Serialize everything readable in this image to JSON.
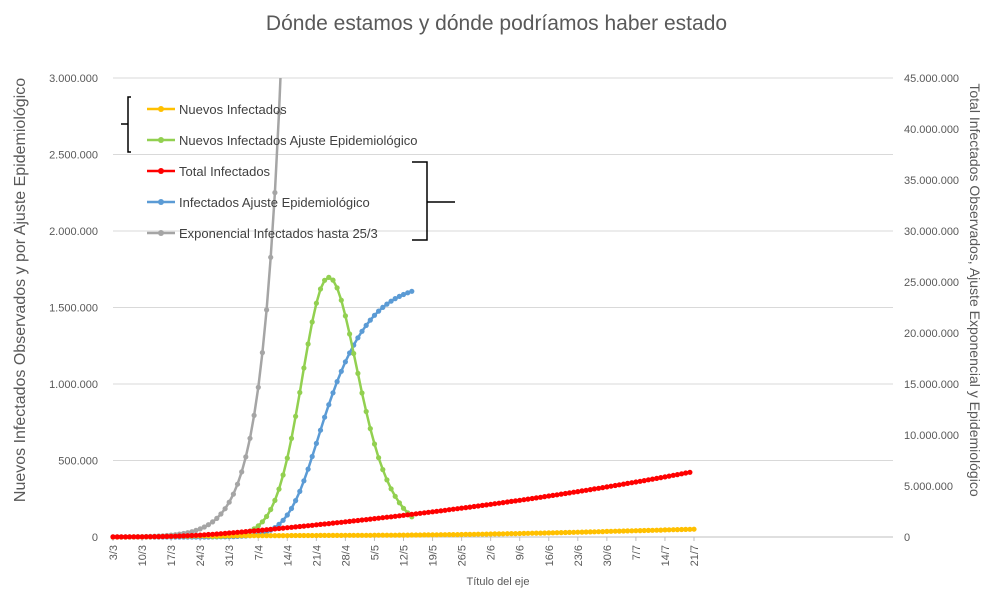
{
  "chart_data": {
    "type": "line",
    "title": "Dónde estamos y dónde podríamos haber estado",
    "xlabel": "Título del eje",
    "ylabel_left": "Nuevos Infectados Observados y por Ajuste Epidemiológico",
    "ylabel_right": "Total Infectados Observados, Ajuste Exponencial y Epidemiológico",
    "ylim_left": [
      0,
      3000000
    ],
    "ylim_right": [
      0,
      45000000
    ],
    "x_start_date": "2020-03-03",
    "x_tick_labels": [
      "3/3",
      "10/3",
      "17/3",
      "24/3",
      "31/3",
      "7/4",
      "14/4",
      "21/4",
      "28/4",
      "5/5",
      "12/5",
      "19/5",
      "26/5",
      "2/6",
      "9/6",
      "16/6",
      "23/6",
      "30/6",
      "7/7",
      "14/7",
      "21/7"
    ],
    "left_tick_labels": [
      "0",
      "500.000",
      "1.000.000",
      "1.500.000",
      "2.000.000",
      "2.500.000",
      "3.000.000"
    ],
    "right_tick_labels": [
      "0",
      "5.000.000",
      "10.000.000",
      "15.000.000",
      "20.000.000",
      "25.000.000",
      "30.000.000",
      "35.000.000",
      "40.000.000",
      "45.000.000"
    ],
    "gridlines": true,
    "legend_position": "top-left",
    "series": [
      {
        "name": "Nuevos Infectados",
        "axis": "left",
        "color": "#ffc000",
        "start_day": 0,
        "values": [
          100,
          150,
          200,
          300,
          400,
          500,
          700,
          900,
          1200,
          1500,
          2000,
          2500,
          3000,
          3500,
          4000,
          4500,
          5000,
          5500,
          6000,
          6500,
          7000,
          7200,
          7400,
          7500,
          7600,
          7700,
          7800,
          7900,
          8000,
          8100,
          8200,
          8300,
          8400,
          8500,
          8600,
          8700,
          8800,
          8900,
          9000,
          9100,
          9200,
          9300,
          9400,
          9500,
          9600,
          9700,
          9800,
          9900,
          10000,
          10100,
          10200,
          10300,
          10400,
          10500,
          10600,
          10700,
          10800,
          10900,
          11000,
          11100,
          11200,
          11300,
          11400,
          11500,
          11600,
          11700,
          11800,
          11900,
          12000,
          12200,
          12400,
          12600,
          12800,
          13000,
          13300,
          13600,
          13900,
          14200,
          14500,
          14800,
          15100,
          15400,
          15700,
          16000,
          16400,
          16800,
          17200,
          17600,
          18000,
          18500,
          19000,
          19500,
          20000,
          20500,
          21000,
          21500,
          22000,
          22500,
          23000,
          23500,
          24000,
          24600,
          25200,
          25800,
          26400,
          27000,
          27600,
          28200,
          28800,
          29400,
          30000,
          30700,
          31400,
          32100,
          32800,
          33500,
          34200,
          34900,
          35600,
          36300,
          37000,
          37700,
          38400,
          39100,
          39800,
          40500,
          41200,
          41900,
          42600,
          43300,
          44000,
          44700,
          45400,
          46100,
          46800,
          47500,
          48200,
          48900,
          49600,
          50300,
          51000
        ]
      },
      {
        "name": "Nuevos Infectados Ajuste Epidemiológico",
        "axis": "left",
        "color": "#92d050",
        "start_day": 24,
        "values": [
          2000,
          2800,
          3900,
          5400,
          7500,
          10500,
          14600,
          20200,
          28000,
          38700,
          53200,
          72900,
          99300,
          134300,
          180000,
          238900,
          313300,
          405200,
          515700,
          644500,
          788800,
          944500,
          1104900,
          1261500,
          1405500,
          1528000,
          1620600,
          1677800,
          1696700,
          1679200,
          1627900,
          1547700,
          1445100,
          1326700,
          1199300,
          1069100,
          941500,
          820500,
          708700,
          607800,
          518600,
          440700,
          373300,
          315300,
          265800,
          223600,
          187900,
          157600,
          132100
        ]
      },
      {
        "name": "Total Infectados",
        "axis": "right",
        "color": "#ff0000",
        "start_day": 0,
        "values": [
          11000,
          12200,
          13400,
          14600,
          16200,
          17900,
          19900,
          22400,
          25700,
          29800,
          35100,
          41500,
          49200,
          58300,
          69000,
          81400,
          95400,
          111000,
          128300,
          147300,
          168000,
          190400,
          214500,
          240200,
          267500,
          296300,
          326400,
          357700,
          390000,
          423300,
          457400,
          492300,
          527900,
          564100,
          600800,
          638000,
          675600,
          713600,
          751900,
          790500,
          829400,
          868600,
          908100,
          947900,
          987900,
          1028200,
          1068800,
          1109600,
          1150700,
          1192000,
          1233600,
          1275500,
          1317600,
          1360000,
          1402700,
          1445700,
          1489000,
          1532600,
          1576500,
          1620600,
          1665100,
          1709800,
          1754900,
          1800300,
          1846000,
          1892000,
          1938300,
          1984900,
          2031800,
          2079100,
          2126700,
          2174700,
          2222900,
          2271500,
          2320400,
          2369700,
          2419300,
          2469200,
          2519500,
          2570100,
          2621100,
          2672400,
          2724100,
          2776100,
          2828500,
          2881300,
          2934400,
          2987900,
          3041800,
          3096100,
          3150700,
          3205800,
          3261200,
          3317000,
          3373100,
          3429700,
          3486600,
          3543900,
          3601600,
          3659700,
          3718200,
          3777200,
          3836500,
          3896300,
          3956500,
          4017100,
          4078100,
          4139500,
          4201400,
          4263700,
          4326400,
          4389600,
          4453200,
          4517300,
          4581800,
          4646800,
          4712200,
          4778100,
          4844400,
          4911200,
          4978400,
          5046100,
          5114300,
          5182900,
          5252000,
          5321600,
          5391700,
          5462200,
          5533200,
          5604700,
          5676700,
          5749200,
          5822200,
          5895700,
          5969700,
          6044200,
          6119200,
          6194700,
          6270700,
          6347300
        ]
      },
      {
        "name": "Infectados Ajuste Epidemiológico",
        "axis": "right",
        "color": "#5b9bd5",
        "start_day": 0,
        "values": [
          0,
          0,
          0,
          0,
          0,
          0,
          0,
          0,
          0,
          0,
          0,
          0,
          0,
          0,
          0,
          0,
          0,
          0,
          0,
          0,
          0,
          0,
          0,
          0,
          10000,
          12800,
          16700,
          22100,
          29600,
          40100,
          54700,
          74900,
          102900,
          141600,
          194800,
          267700,
          367000,
          501300,
          681300,
          920200,
          1234000,
          1640500,
          2155800,
          2794300,
          3566300,
          4474200,
          5511300,
          6660200,
          7893000,
          9175200,
          10469500,
          11744200,
          12972400,
          14138900,
          15230700,
          16244700,
          17179200,
          18036300,
          18818100,
          19528600,
          20170800,
          20749300,
          21268400,
          21731800,
          22144100,
          22509800,
          22833200,
          23118300,
          23368800,
          23588000,
          23779200,
          23945500,
          24089600
        ]
      },
      {
        "name": "Exponencial Infectados hasta 25/3",
        "axis": "right",
        "color": "#a5a5a5",
        "start_day": 0,
        "values": [
          10000,
          12300,
          15200,
          18700,
          23000,
          28300,
          34900,
          43000,
          52900,
          65200,
          80300,
          98900,
          121800,
          150000,
          184800,
          227600,
          280300,
          345200,
          425200,
          523700,
          645000,
          794400,
          978400,
          1205000,
          1484000,
          1827700,
          2251000,
          2772400,
          3414500,
          4205300,
          5179200,
          6378800,
          7856200,
          9675800,
          11916800,
          14676800,
          18076000,
          22262700,
          27418900,
          33769500,
          41590900,
          51223500
        ]
      }
    ],
    "annotations": [
      "brace-left-series",
      "brace-right-series"
    ]
  }
}
